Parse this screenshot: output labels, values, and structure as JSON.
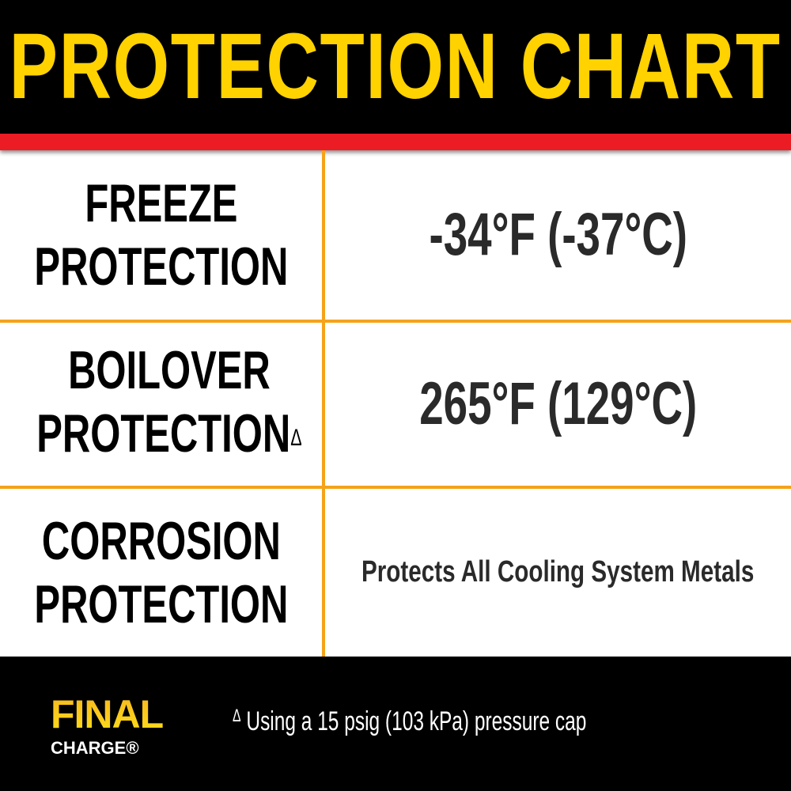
{
  "header": {
    "title": "PROTECTION CHART"
  },
  "rows": [
    {
      "label_line1": "FREEZE",
      "label_line2": "PROTECTION",
      "value": "-34°F (-37°C)"
    },
    {
      "label_line1": "BOILOVER",
      "label_line2": "PROTECTION",
      "marker": "Δ",
      "value": "265°F (129°C)"
    },
    {
      "label_line1": "CORROSION",
      "label_line2": "PROTECTION",
      "value": "Protects All Cooling System Metals"
    }
  ],
  "footer": {
    "logo_top": "FINAL",
    "logo_bottom": "CHARGE®",
    "note_marker": "Δ",
    "note": "Using a 15 psig (103 kPa) pressure cap"
  },
  "colors": {
    "title": "#FFD200",
    "band": "#EC1C24",
    "divider": "#F5A31A",
    "background": "#000000"
  }
}
